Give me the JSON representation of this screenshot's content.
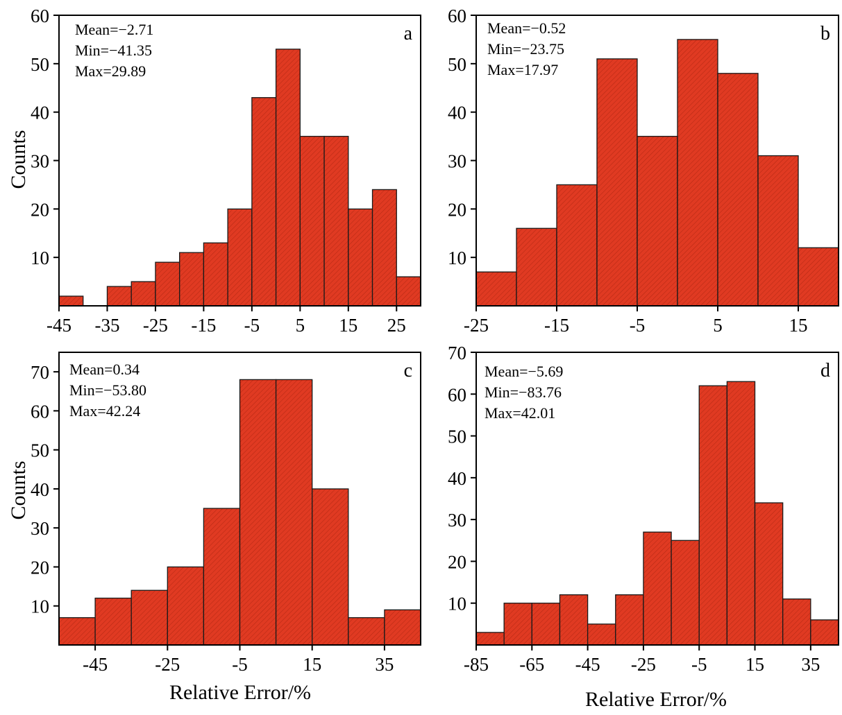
{
  "figure": {
    "common_xlabel": "Relative Error/%",
    "common_ylabel": "Counts"
  },
  "chart_data": [
    {
      "type": "bar",
      "panel": "a",
      "stats": [
        "Mean=−2.71",
        "Min=−41.35",
        "Max=29.89"
      ],
      "xlabel": "",
      "ylabel": "Counts",
      "xlim": [
        -45,
        30
      ],
      "ylim": [
        0,
        60
      ],
      "xticks": [
        -45,
        -35,
        -25,
        -15,
        -5,
        5,
        15,
        25
      ],
      "yticks": [
        10,
        20,
        30,
        40,
        50,
        60
      ],
      "bin_edges": [
        -45,
        -40,
        -35,
        -30,
        -25,
        -20,
        -15,
        -10,
        -5,
        0,
        5,
        10,
        15,
        20,
        25,
        30
      ],
      "values": [
        2,
        0,
        4,
        5,
        9,
        11,
        13,
        20,
        43,
        53,
        35,
        35,
        20,
        24,
        6
      ],
      "color": "#E03A22"
    },
    {
      "type": "bar",
      "panel": "b",
      "stats": [
        "Mean=−0.52",
        "Min=−23.75",
        "Max=17.97"
      ],
      "xlabel": "",
      "ylabel": "",
      "xlim": [
        -25,
        20
      ],
      "ylim": [
        0,
        60
      ],
      "xticks": [
        -25,
        -15,
        -5,
        5,
        15
      ],
      "yticks": [
        10,
        20,
        30,
        40,
        50,
        60
      ],
      "bin_edges": [
        -25,
        -20,
        -15,
        -10,
        -5,
        0,
        5,
        10,
        15,
        20
      ],
      "values": [
        7,
        16,
        25,
        51,
        35,
        55,
        48,
        31,
        12
      ],
      "color": "#E03A22"
    },
    {
      "type": "bar",
      "panel": "c",
      "stats": [
        "Mean=0.34",
        "Min=−53.80",
        "Max=42.24"
      ],
      "xlabel": "Relative Error/%",
      "ylabel": "Counts",
      "xlim": [
        -55,
        45
      ],
      "ylim": [
        0,
        75
      ],
      "xticks": [
        -45,
        -25,
        -5,
        15,
        35
      ],
      "yticks": [
        10,
        20,
        30,
        40,
        50,
        60,
        70
      ],
      "bin_edges": [
        -55,
        -45,
        -35,
        -25,
        -15,
        -5,
        5,
        15,
        25,
        35,
        45
      ],
      "values": [
        7,
        12,
        14,
        20,
        35,
        68,
        68,
        40,
        7,
        9
      ],
      "color": "#E03A22"
    },
    {
      "type": "bar",
      "panel": "d",
      "stats": [
        "Mean=−5.69",
        "Min=−83.76",
        "Max=42.01"
      ],
      "xlabel": "Relative Error/%",
      "ylabel": "",
      "xlim": [
        -85,
        45
      ],
      "ylim": [
        0,
        70
      ],
      "xticks": [
        -85,
        -65,
        -45,
        -25,
        -5,
        15,
        35
      ],
      "yticks": [
        10,
        20,
        30,
        40,
        50,
        60,
        70
      ],
      "bin_edges": [
        -85,
        -75,
        -65,
        -55,
        -45,
        -35,
        -25,
        -15,
        -5,
        5,
        15,
        25,
        35,
        45
      ],
      "values": [
        3,
        10,
        10,
        12,
        5,
        12,
        27,
        25,
        62,
        63,
        34,
        11,
        6
      ],
      "color": "#E03A22"
    }
  ]
}
